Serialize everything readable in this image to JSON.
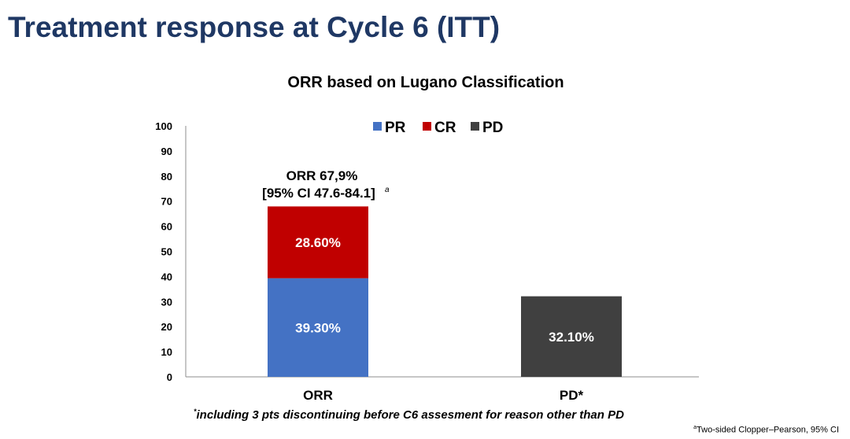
{
  "page": {
    "title": "Treatment response at Cycle 6 (ITT)",
    "footnote_marker": "*",
    "footnote": "including 3 pts discontinuing before C6 assesment for reason other than PD",
    "source_marker": "a",
    "source_note": "Two-sided Clopper–Pearson, 95% CI"
  },
  "chart_data": {
    "type": "bar",
    "stacked": true,
    "title": "ORR based on Lugano Classification",
    "categories": [
      "ORR",
      "PD*"
    ],
    "series": [
      {
        "name": "PR",
        "color": "#4472c4",
        "values": [
          39.3,
          0
        ],
        "labels": [
          "39.30%",
          ""
        ]
      },
      {
        "name": "CR",
        "color": "#c00000",
        "values": [
          28.6,
          0
        ],
        "labels": [
          "28.60%",
          ""
        ]
      },
      {
        "name": "PD",
        "color": "#404040",
        "values": [
          0,
          32.1
        ],
        "labels": [
          "",
          "32.10%"
        ]
      }
    ],
    "ylim": [
      0,
      100
    ],
    "yticks": [
      "0",
      "10",
      "20",
      "30",
      "40",
      "50",
      "60",
      "70",
      "80",
      "90",
      "100"
    ],
    "grid": false,
    "legend_position": "top",
    "annotation": {
      "category": "ORR",
      "line1": "ORR 67,9%",
      "line2": "[95% CI 47.6-84.1]",
      "marker": "a"
    }
  }
}
